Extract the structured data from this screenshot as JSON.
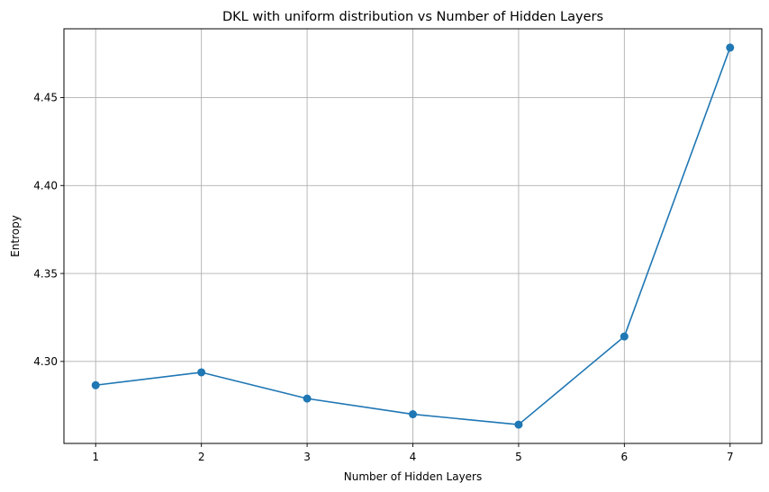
{
  "chart_data": {
    "type": "line",
    "title": "DKL with uniform distribution vs Number of Hidden Layers",
    "xlabel": "Number of Hidden Layers",
    "ylabel": "Entropy",
    "x": [
      1,
      2,
      3,
      4,
      5,
      6,
      7
    ],
    "series": [
      {
        "values": [
          4.2865,
          4.2938,
          4.2789,
          4.27,
          4.2641,
          4.3142,
          4.4784
        ],
        "color": "#1f77b4",
        "marker": "circle"
      }
    ],
    "xticks": [
      1,
      2,
      3,
      4,
      5,
      6,
      7
    ],
    "yticks": [
      4.3,
      4.35,
      4.4,
      4.45
    ],
    "ytick_labels": [
      "4.30",
      "4.35",
      "4.40",
      "4.45"
    ],
    "xlim": [
      0.7,
      7.3
    ],
    "ylim": [
      4.2534,
      4.4891
    ],
    "grid": true
  }
}
